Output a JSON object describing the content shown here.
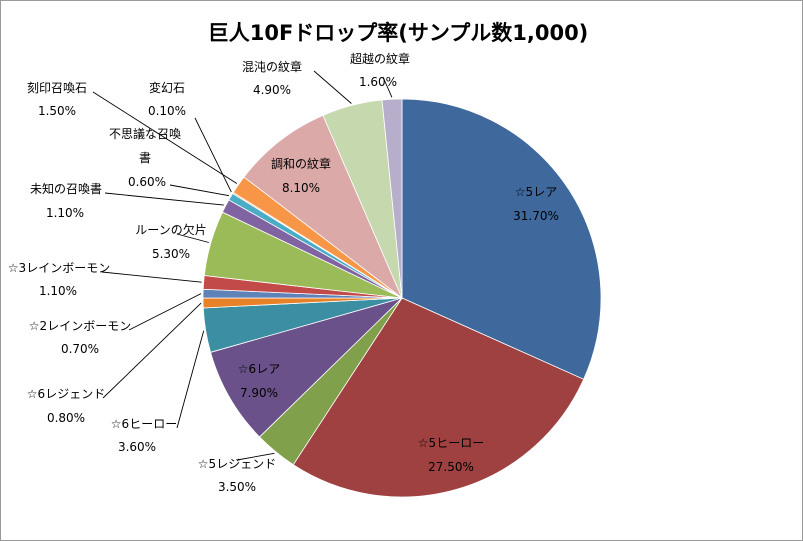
{
  "chart_data": {
    "type": "pie",
    "title": "巨人10Fドロップ率(サンプル数1,000)",
    "start_angle_deg": 0,
    "direction": "clockwise",
    "slices": [
      {
        "name": "☆5レア",
        "value": 31.7,
        "label": "31.70%",
        "color": "#3F689D"
      },
      {
        "name": "☆5ヒーロー",
        "value": 27.5,
        "label": "27.50%",
        "color": "#9E4140"
      },
      {
        "name": "☆5レジェンド",
        "value": 3.5,
        "label": "3.50%",
        "color": "#80A04C"
      },
      {
        "name": "☆6レア",
        "value": 7.9,
        "label": "7.90%",
        "color": "#6A5189"
      },
      {
        "name": "☆6ヒーロー",
        "value": 3.6,
        "label": "3.60%",
        "color": "#3C8FA3"
      },
      {
        "name": "☆6レジェンド",
        "value": 0.8,
        "label": "0.80%",
        "color": "#E88228"
      },
      {
        "name": "☆2レインボーモン",
        "value": 0.7,
        "label": "0.70%",
        "color": "#5F82B8"
      },
      {
        "name": "☆3レインボーモン",
        "value": 1.1,
        "label": "1.10%",
        "color": "#C24B49"
      },
      {
        "name": "ルーンの欠片",
        "value": 5.3,
        "label": "5.30%",
        "color": "#9BBB59"
      },
      {
        "name": "未知の召喚書",
        "value": 1.1,
        "label": "1.10%",
        "color": "#8064A2"
      },
      {
        "name": "不思議な召喚書",
        "value": 0.6,
        "label": "0.60%",
        "color": "#4BACC6"
      },
      {
        "name": "変幻石",
        "value": 0.1,
        "label": "0.10%",
        "color": "#F79646"
      },
      {
        "name": "刻印召喚石",
        "value": 1.5,
        "label": "1.50%",
        "color": "#F79646"
      },
      {
        "name": "調和の紋章",
        "value": 8.1,
        "label": "8.10%",
        "color": "#DBA9A8"
      },
      {
        "name": "混沌の紋章",
        "value": 4.9,
        "label": "4.90%",
        "color": "#C6D8AE"
      },
      {
        "name": "超越の紋章",
        "value": 1.6,
        "label": "1.60%",
        "color": "#B7AECB"
      }
    ]
  }
}
